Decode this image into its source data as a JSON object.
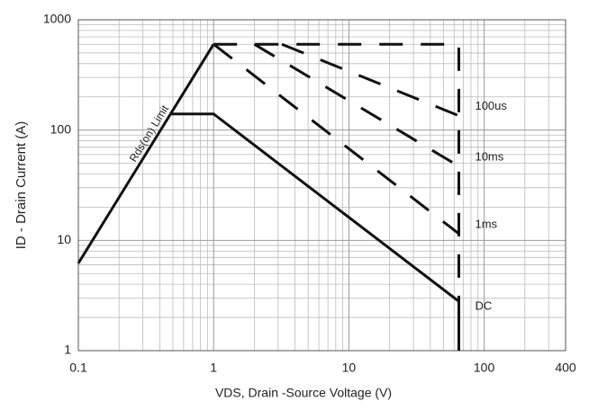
{
  "chart_data": {
    "type": "line",
    "xlabel": "VDS, Drain -Source Voltage (V)",
    "ylabel": "ID - Drain Current (A)",
    "xscale": "log",
    "yscale": "log",
    "xlim": [
      0.1,
      400
    ],
    "ylim": [
      1,
      1000
    ],
    "xticks": [
      0.1,
      1,
      10,
      100,
      400
    ],
    "yticks": [
      1,
      10,
      100,
      1000
    ],
    "grid": true,
    "minor_grid": true,
    "color": "#111111",
    "series": [
      {
        "name": "Rds(on) Limit",
        "style": "solid",
        "x": [
          0.1,
          1
        ],
        "values": [
          6.2,
          600
        ]
      },
      {
        "name": "DC",
        "style": "solid",
        "x": [
          0.48,
          1,
          65,
          65
        ],
        "values": [
          140,
          140,
          2.8,
          1
        ]
      },
      {
        "name": "1ms",
        "style": "dashed",
        "x": [
          1,
          65
        ],
        "values": [
          600,
          11.5
        ]
      },
      {
        "name": "10ms",
        "style": "dashed",
        "x": [
          2,
          65
        ],
        "values": [
          600,
          47
        ]
      },
      {
        "name": "100us",
        "style": "dashed",
        "x": [
          3.2,
          65
        ],
        "values": [
          600,
          135
        ]
      },
      {
        "style": "dashed",
        "x": [
          1,
          65,
          65
        ],
        "values": [
          600,
          600,
          2.8
        ]
      }
    ]
  }
}
